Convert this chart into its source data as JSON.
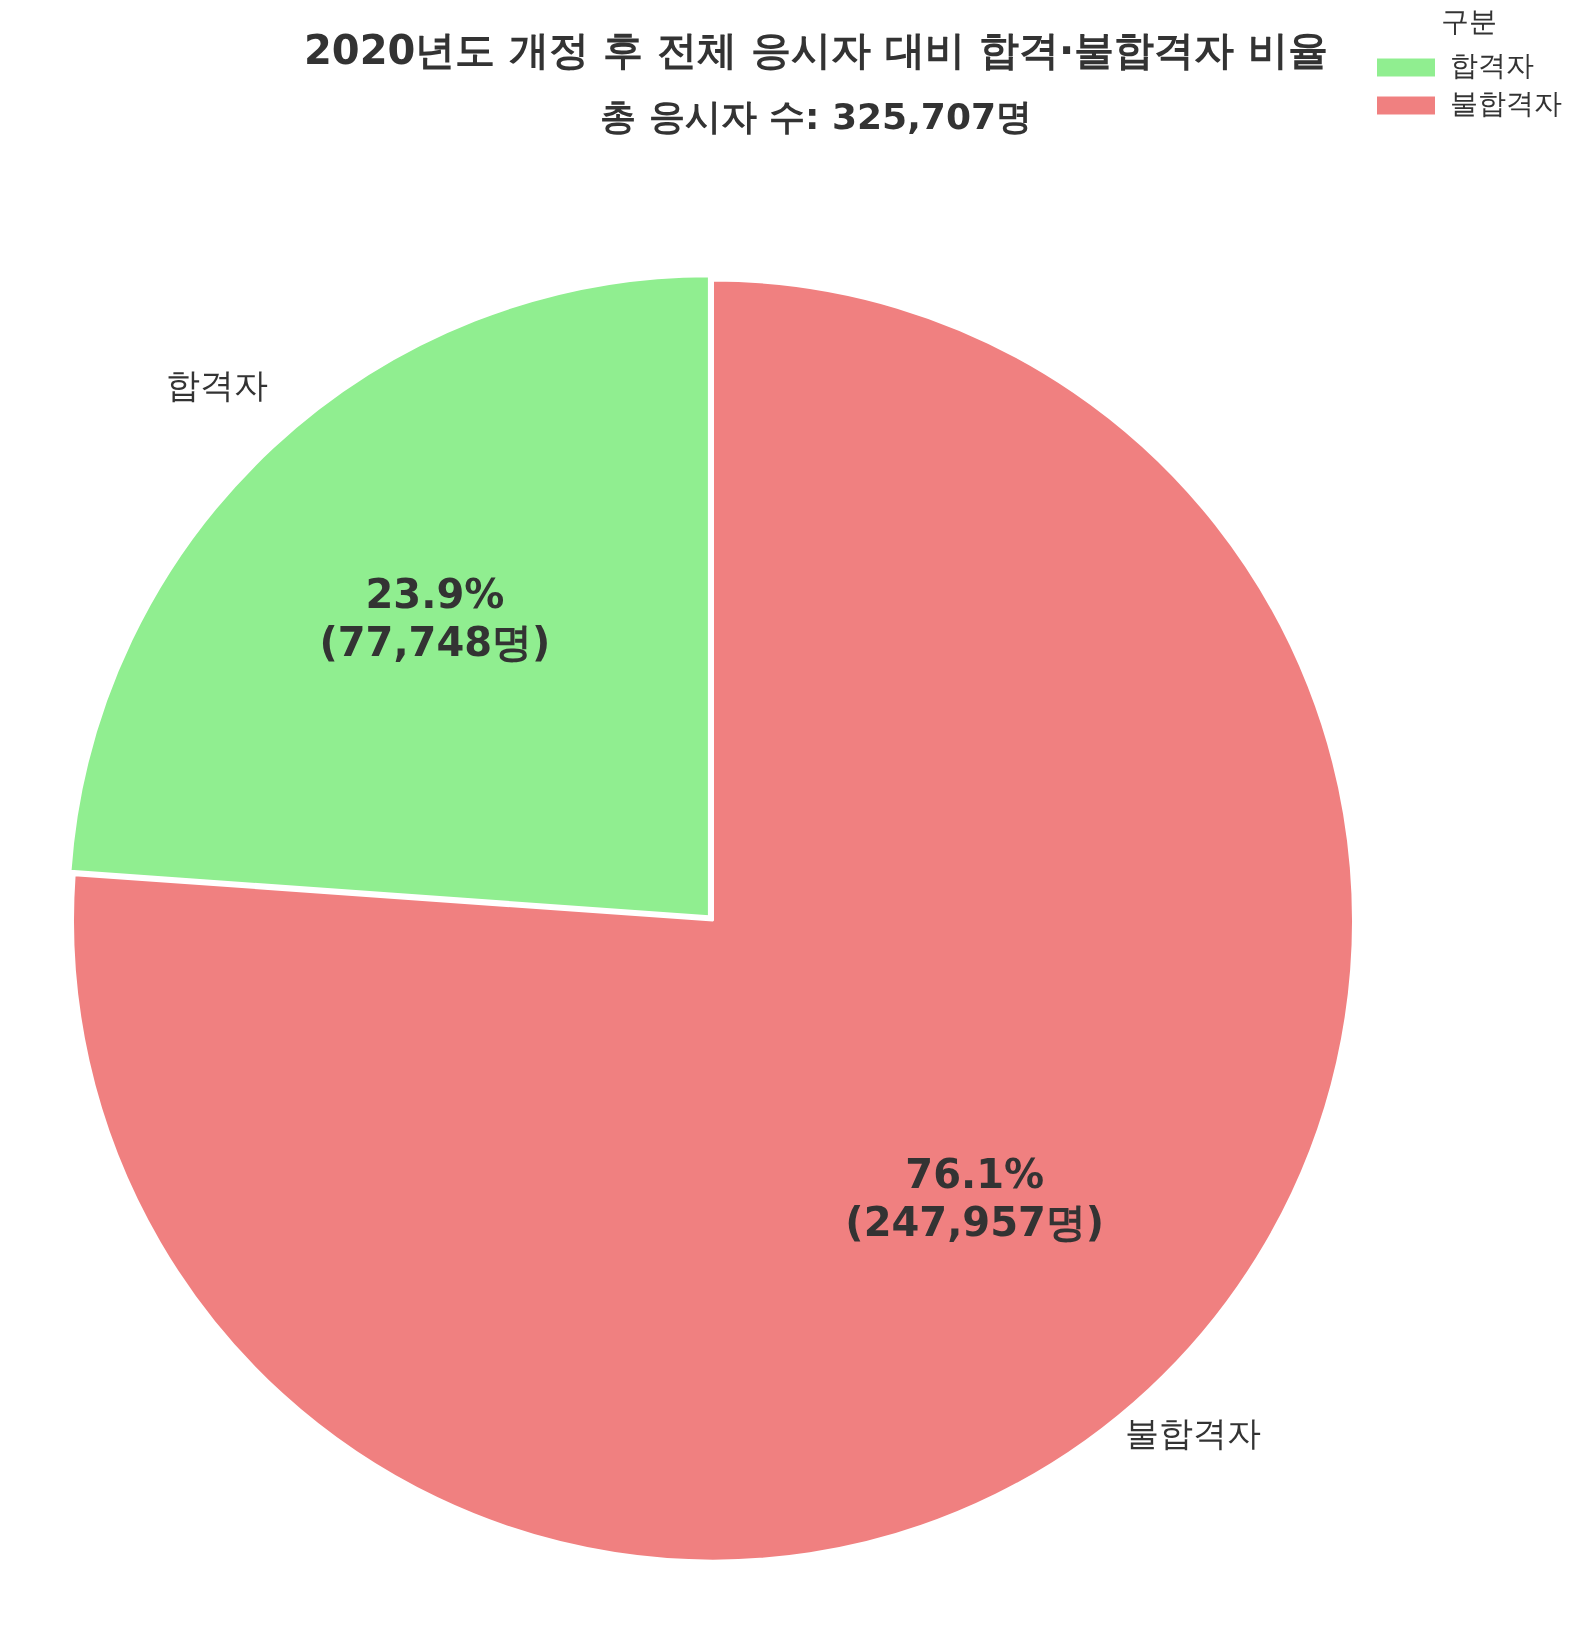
{
  "chart_data": {
    "type": "pie",
    "title": "2020년도 개정 후 전체 응시자 대비 합격·불합격자 비율",
    "subtitle": "총 응시자 수: 325,707명",
    "categories": [
      "합격자",
      "불합격자"
    ],
    "values": [
      77748,
      247957
    ],
    "colors": [
      "#90ee90",
      "#f08080"
    ],
    "value_labels": [
      "23.9%\n(77,748명)",
      "76.1%\n(247,957명)"
    ],
    "legend": "top right",
    "legend_title": "구분"
  }
}
